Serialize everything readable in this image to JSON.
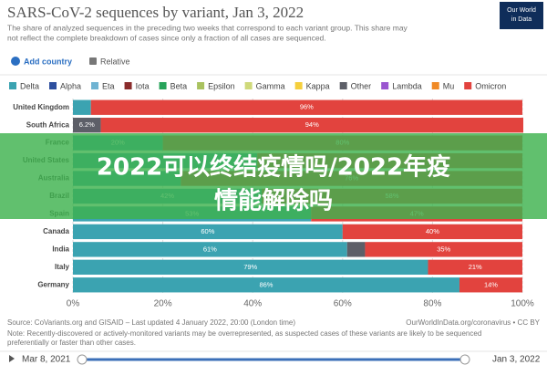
{
  "chart_data": {
    "type": "stacked-bar-horizontal",
    "title": "SARS-CoV-2 sequences by variant, Jan 3, 2022",
    "subtitle": [
      "The share of analyzed sequences in the preceding two weeks that correspond to each variant group. This share may",
      "not reflect the complete breakdown of cases since only a fraction of all cases are sequenced."
    ],
    "logo": [
      "Our World",
      "in Data"
    ],
    "controls": {
      "add": "Add country",
      "relative": "Relative"
    },
    "categories": [
      "United Kingdom",
      "South Africa",
      "France",
      "United States",
      "Australia",
      "Brazil",
      "Spain",
      "Canada",
      "India",
      "Italy",
      "Germany"
    ],
    "series": [
      {
        "name": "Delta",
        "color": "#3ba3b1",
        "values": [
          4,
          0,
          20,
          41,
          24,
          42,
          53,
          60,
          61,
          79,
          86
        ],
        "value_labels": [
          null,
          null,
          "20%",
          null,
          null,
          "42%",
          "53%",
          "60%",
          "61%",
          "79%",
          "86%"
        ]
      },
      {
        "name": "Alpha",
        "color": "#2d4f9e",
        "values": [
          0,
          0,
          0,
          0,
          0,
          0,
          0,
          0,
          0,
          0,
          0
        ]
      },
      {
        "name": "Eta",
        "color": "#6fb3d2",
        "values": [
          0,
          0,
          0,
          0,
          0,
          0,
          0,
          0,
          0,
          0,
          0
        ]
      },
      {
        "name": "Iota",
        "color": "#8a2c2c",
        "values": [
          0,
          0,
          0,
          0,
          0,
          0,
          0,
          0,
          0,
          0,
          0
        ]
      },
      {
        "name": "Beta",
        "color": "#27a35a",
        "values": [
          0,
          0,
          0,
          0,
          0,
          0,
          0,
          0,
          0,
          0,
          0
        ]
      },
      {
        "name": "Epsilon",
        "color": "#a9c25f",
        "values": [
          0,
          0,
          0,
          0,
          0,
          0,
          0,
          0,
          0,
          0,
          0
        ]
      },
      {
        "name": "Gamma",
        "color": "#cfd97a",
        "values": [
          0,
          0,
          0,
          0,
          0,
          0,
          0,
          0,
          0,
          0,
          0
        ]
      },
      {
        "name": "Kappa",
        "color": "#f5cf3c",
        "values": [
          0,
          0,
          0,
          0,
          0,
          0,
          0,
          0,
          0,
          0,
          0
        ]
      },
      {
        "name": "Other",
        "color": "#5d5f68",
        "values": [
          0,
          6.2,
          0,
          0,
          0,
          0,
          0,
          0,
          4,
          0,
          0
        ],
        "value_labels": [
          null,
          "6.2%",
          null,
          null,
          null,
          null,
          null,
          null,
          null,
          null,
          null
        ]
      },
      {
        "name": "Lambda",
        "color": "#9a55d0",
        "values": [
          0,
          0,
          0,
          0,
          0,
          0,
          0,
          0,
          0,
          0,
          0
        ]
      },
      {
        "name": "Mu",
        "color": "#f08a26",
        "values": [
          0,
          0,
          0,
          0,
          0,
          0,
          0,
          0,
          0,
          0,
          0
        ]
      },
      {
        "name": "Omicron",
        "color": "#e2433e",
        "values": [
          96,
          94,
          80,
          59,
          76,
          58,
          47,
          40,
          35,
          21,
          14
        ],
        "value_labels": [
          "96%",
          "94%",
          "80%",
          null,
          "76%",
          "58%",
          "47%",
          "40%",
          "35%",
          "21%",
          "14%"
        ]
      }
    ],
    "xlim": [
      0,
      100
    ],
    "xticks": [
      {
        "value": 0,
        "label": "0%"
      },
      {
        "value": 20,
        "label": "20%"
      },
      {
        "value": 40,
        "label": "40%"
      },
      {
        "value": 60,
        "label": "60%"
      },
      {
        "value": 80,
        "label": "80%"
      },
      {
        "value": 100,
        "label": "100%"
      }
    ],
    "grid": true,
    "source": "Source: CoVariants.org and GISAID – Last updated 4 January 2022, 20:00 (London time)",
    "url": "OurWorldInData.org/coronavirus • CC BY",
    "note": [
      "Note: Recently-discovered or actively-monitored variants may be overrepresented, as suspected cases of these variants are likely to be sequenced",
      "preferentially or faster than other cases."
    ],
    "timeline": [
      "Mar 8, 2021",
      "Jan 3, 2022"
    ],
    "overlay": [
      "2022可以终结疫情吗/2022年疫",
      "情能解除吗"
    ]
  }
}
